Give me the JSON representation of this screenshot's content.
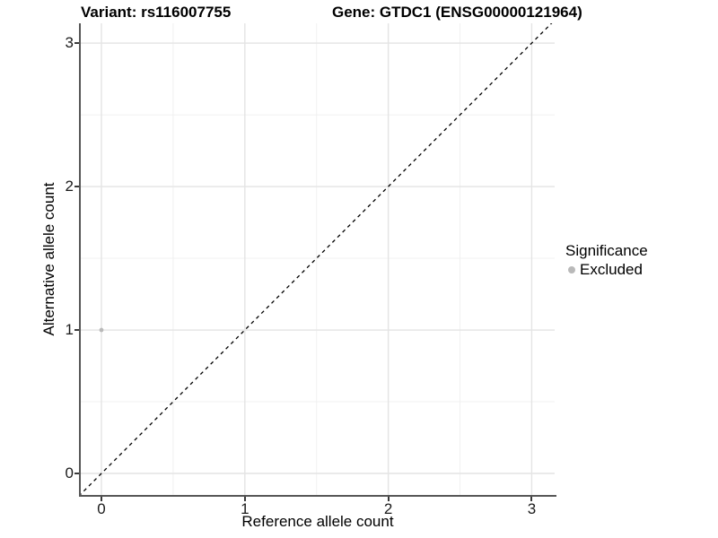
{
  "figure": {
    "titles": {
      "left": "Variant: rs116007755",
      "right": "Gene: GTDC1 (ENSG00000121964)"
    }
  },
  "chart_data": {
    "type": "scatter",
    "xlabel": "Reference allele count",
    "ylabel": "Alternative allele count",
    "x_ticks": [
      0,
      1,
      2,
      3
    ],
    "y_ticks": [
      0,
      1,
      2,
      3
    ],
    "x_minor_ticks": [
      0.5,
      1.5,
      2.5
    ],
    "y_minor_ticks": [
      0.5,
      1.5,
      2.5
    ],
    "xlim": [
      -0.144,
      3.16
    ],
    "ylim": [
      -0.15,
      3.138
    ],
    "grid": "major+minor",
    "points": [
      {
        "x": 0,
        "y": 1,
        "series": "Excluded"
      }
    ],
    "diagonal_line": {
      "from": [
        -0.3,
        -0.3
      ],
      "to": [
        3.3,
        3.3
      ],
      "style": "dashed"
    },
    "legend": {
      "title": "Significance",
      "position": "right",
      "items": [
        {
          "label": "Excluded",
          "color": "#b9b9b9"
        }
      ]
    }
  },
  "colors": {
    "background": "#ffffff",
    "grid_major": "#e4e4e4",
    "grid_minor": "#f0f0f0",
    "axis_line": "#565656",
    "tick_mark": "#3a3a3a",
    "diagonal": "#000000",
    "point": "#b9b9b9",
    "text": "#000000"
  }
}
